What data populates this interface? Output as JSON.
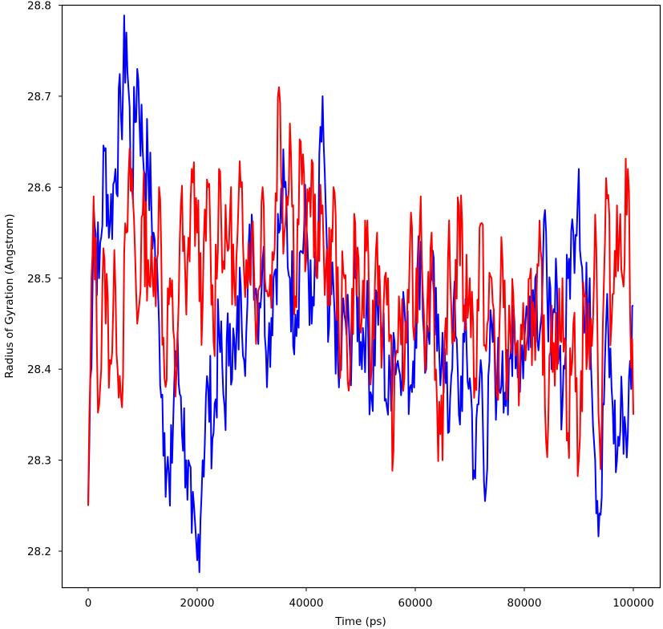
{
  "chart_data": {
    "type": "line",
    "title": "",
    "xlabel": "Time (ps)",
    "ylabel": "Radius of Gyration (Angstrom)",
    "xlim": [
      -5000,
      105000
    ],
    "ylim": [
      28.16,
      28.8
    ],
    "xticks": [
      0,
      20000,
      40000,
      60000,
      80000,
      100000
    ],
    "xtick_labels": [
      "0",
      "20000",
      "40000",
      "60000",
      "80000",
      "100000"
    ],
    "yticks": [
      28.2,
      28.3,
      28.4,
      28.5,
      28.6,
      28.7,
      28.8
    ],
    "ytick_labels": [
      "28.2",
      "28.3",
      "28.4",
      "28.5",
      "28.6",
      "28.7",
      "28.8"
    ],
    "grid": false,
    "legend": null,
    "x": [
      0,
      1000,
      2000,
      3000,
      4000,
      5000,
      6000,
      7000,
      8000,
      9000,
      10000,
      11000,
      12000,
      13000,
      14000,
      15000,
      16000,
      17000,
      18000,
      19000,
      20000,
      21000,
      22000,
      23000,
      24000,
      25000,
      26000,
      27000,
      28000,
      29000,
      30000,
      31000,
      32000,
      33000,
      34000,
      35000,
      36000,
      37000,
      38000,
      39000,
      40000,
      41000,
      42000,
      43000,
      44000,
      45000,
      46000,
      47000,
      48000,
      49000,
      50000,
      51000,
      52000,
      53000,
      54000,
      55000,
      56000,
      57000,
      58000,
      59000,
      60000,
      61000,
      62000,
      63000,
      64000,
      65000,
      66000,
      67000,
      68000,
      69000,
      70000,
      71000,
      72000,
      73000,
      74000,
      75000,
      76000,
      77000,
      78000,
      79000,
      80000,
      81000,
      82000,
      83000,
      84000,
      85000,
      86000,
      87000,
      88000,
      89000,
      90000,
      91000,
      92000,
      93000,
      94000,
      95000,
      96000,
      97000,
      98000,
      99000,
      100000
    ],
    "series": [
      {
        "name": "blue",
        "color": "#0000ff",
        "values": [
          28.25,
          28.58,
          28.5,
          28.64,
          28.56,
          28.62,
          28.68,
          28.77,
          28.6,
          28.73,
          28.64,
          28.62,
          28.55,
          28.45,
          28.33,
          28.25,
          28.42,
          28.37,
          28.3,
          28.22,
          28.19,
          28.3,
          28.38,
          28.33,
          28.44,
          28.36,
          28.45,
          28.4,
          28.49,
          28.44,
          28.57,
          28.47,
          28.52,
          28.42,
          28.5,
          28.55,
          28.6,
          28.5,
          28.46,
          28.53,
          28.56,
          28.45,
          28.5,
          28.7,
          28.43,
          28.49,
          28.38,
          28.46,
          28.42,
          28.5,
          28.43,
          28.46,
          28.37,
          28.48,
          28.44,
          28.35,
          28.44,
          28.4,
          28.47,
          28.38,
          28.45,
          28.54,
          28.4,
          28.5,
          28.42,
          28.44,
          28.33,
          28.47,
          28.35,
          28.43,
          28.39,
          28.28,
          28.41,
          28.27,
          28.45,
          28.38,
          28.42,
          28.35,
          28.47,
          28.4,
          28.43,
          28.48,
          28.5,
          28.45,
          28.55,
          28.4,
          28.49,
          28.36,
          28.5,
          28.55,
          28.62,
          28.44,
          28.5,
          28.3,
          28.24,
          28.45,
          28.38,
          28.3,
          28.36,
          28.33,
          28.47
        ]
      },
      {
        "name": "red",
        "color": "#ff0000",
        "values": [
          28.25,
          28.59,
          28.36,
          28.52,
          28.41,
          28.49,
          28.37,
          28.55,
          28.62,
          28.45,
          28.57,
          28.52,
          28.48,
          28.6,
          28.39,
          28.5,
          28.37,
          28.58,
          28.46,
          28.62,
          28.55,
          28.47,
          28.6,
          28.43,
          28.62,
          28.51,
          28.57,
          28.47,
          28.6,
          28.52,
          28.55,
          28.45,
          28.6,
          28.48,
          28.52,
          28.71,
          28.55,
          28.67,
          28.48,
          28.65,
          28.52,
          28.63,
          28.5,
          28.58,
          28.47,
          28.6,
          28.43,
          28.5,
          28.39,
          28.56,
          28.44,
          28.53,
          28.4,
          28.55,
          28.43,
          28.5,
          28.31,
          28.48,
          28.39,
          28.53,
          28.45,
          28.59,
          28.42,
          28.55,
          28.36,
          28.3,
          28.52,
          28.44,
          28.58,
          28.47,
          28.5,
          28.39,
          28.56,
          28.42,
          28.5,
          28.37,
          28.52,
          28.4,
          28.48,
          28.36,
          28.44,
          28.5,
          28.41,
          28.53,
          28.32,
          28.47,
          28.4,
          28.5,
          28.33,
          28.45,
          28.3,
          28.48,
          28.4,
          28.57,
          28.29,
          28.61,
          28.45,
          28.58,
          28.5,
          28.62,
          28.35
        ]
      }
    ]
  },
  "axes": {
    "x_label": "Time (ps)",
    "y_label": "Radius of Gyration (Angstrom)"
  }
}
